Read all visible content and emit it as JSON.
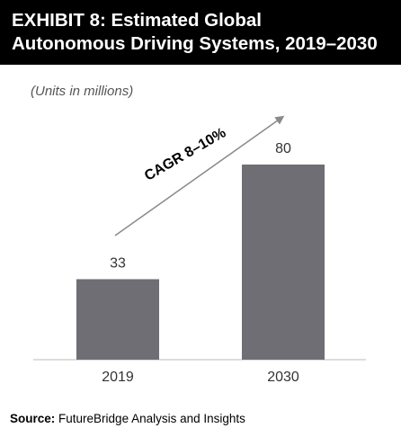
{
  "header": {
    "title_line1": "EXHIBIT 8: Estimated Global",
    "title_line2": "Autonomous Driving Systems, 2019–2030"
  },
  "units_note": "(Units in millions)",
  "annotation": "CAGR 8–10%",
  "source": {
    "label": "Source:",
    "text": "FutureBridge Analysis and Insights"
  },
  "colors": {
    "header_bg": "#000000",
    "bar": "#6e6e74",
    "arrow": "#8a8a8a"
  },
  "chart_data": {
    "type": "bar",
    "categories": [
      "2019",
      "2030"
    ],
    "values": [
      33,
      80
    ],
    "data_labels": [
      "33",
      "80"
    ],
    "title": "EXHIBIT 8: Estimated Global Autonomous Driving Systems, 2019–2030",
    "ylabel": "(Units in millions)",
    "xlabel": "",
    "ylim": [
      0,
      88
    ],
    "grid": false,
    "legend": "none"
  }
}
